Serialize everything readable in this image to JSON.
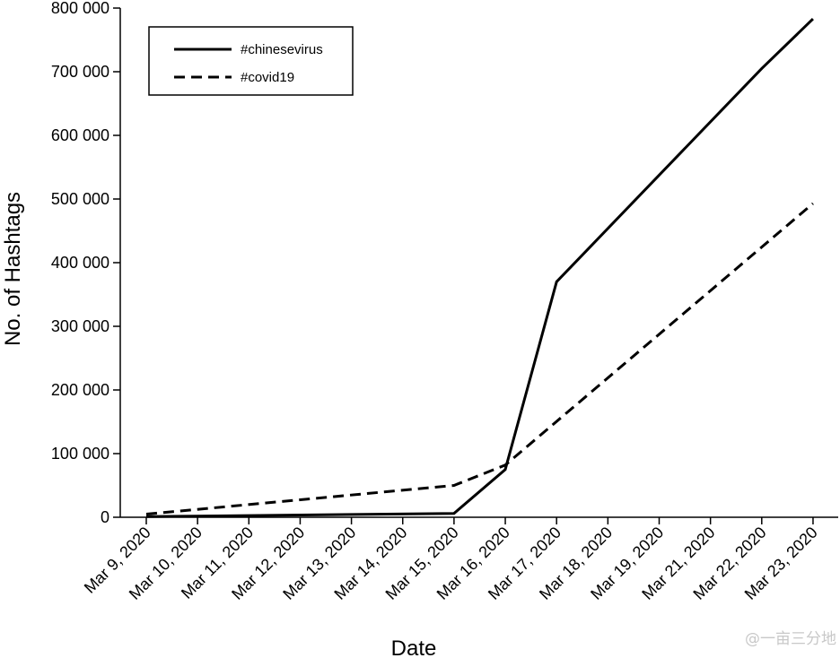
{
  "chart_data": {
    "type": "line",
    "title": "",
    "xlabel": "Date",
    "ylabel": "No. of Hashtags",
    "x": [
      "Mar 9, 2020",
      "Mar 10, 2020",
      "Mar 11, 2020",
      "Mar 12, 2020",
      "Mar 13, 2020",
      "Mar 14, 2020",
      "Mar 15, 2020",
      "Mar 16, 2020",
      "Mar 17, 2020",
      "Mar 18, 2020",
      "Mar 19, 2020",
      "Mar 21, 2020",
      "Mar 22, 2020",
      "Mar 23, 2020"
    ],
    "ylim": [
      0,
      800000
    ],
    "yticks": [
      0,
      100000,
      200000,
      300000,
      400000,
      500000,
      600000,
      700000,
      800000
    ],
    "ytick_labels": [
      "0",
      "100 000",
      "200 000",
      "300 000",
      "400 000",
      "500 000",
      "600 000",
      "700 000",
      "800 000"
    ],
    "series": [
      {
        "name": "#chinesevirus",
        "style": "solid",
        "color": "#000000",
        "points": [
          {
            "x": "Mar 9, 2020",
            "y": 1000
          },
          {
            "x": "Mar 15, 2020",
            "y": 6000
          },
          {
            "x": "Mar 16, 2020",
            "y": 75000
          },
          {
            "x": "Mar 17, 2020",
            "y": 370000
          },
          {
            "x": "Mar 22, 2020",
            "y": 705000
          },
          {
            "x": "Mar 23, 2020",
            "y": 783000
          }
        ]
      },
      {
        "name": "#covid19",
        "style": "dashed",
        "color": "#000000",
        "points": [
          {
            "x": "Mar 9, 2020",
            "y": 5000
          },
          {
            "x": "Mar 15, 2020",
            "y": 50000
          },
          {
            "x": "Mar 16, 2020",
            "y": 82000
          },
          {
            "x": "Mar 23, 2020",
            "y": 493000
          }
        ]
      }
    ],
    "legend": {
      "position": "top-left",
      "entries": [
        "#chinesevirus",
        "#covid19"
      ]
    },
    "grid": false
  },
  "watermark": {
    "text": "@一亩三分地"
  }
}
